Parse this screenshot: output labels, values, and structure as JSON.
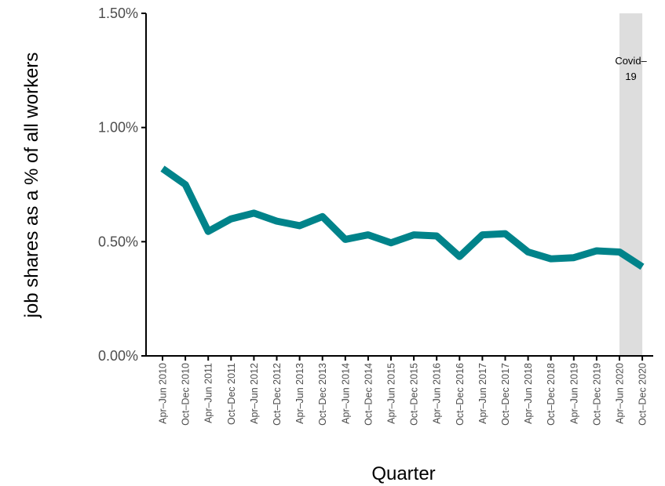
{
  "chart_data": {
    "type": "line",
    "xlabel": "Quarter",
    "ylabel": "job shares as a % of all workers",
    "ylim": [
      0,
      1.5
    ],
    "yticks": [
      "0.00%",
      "0.50%",
      "1.00%",
      "1.50%"
    ],
    "ytick_values": [
      0,
      0.5,
      1.0,
      1.5
    ],
    "categories": [
      "Apr–Jun 2010",
      "Oct–Dec 2010",
      "Apr–Jun 2011",
      "Oct–Dec 2011",
      "Apr–Jun 2012",
      "Oct–Dec 2012",
      "Apr–Jun 2013",
      "Oct–Dec 2013",
      "Apr–Jun 2014",
      "Oct–Dec 2014",
      "Apr–Jun 2015",
      "Oct–Dec 2015",
      "Apr–Jun 2016",
      "Oct–Dec 2016",
      "Apr–Jun 2017",
      "Oct–Dec 2017",
      "Apr–Jun 2018",
      "Oct–Dec 2018",
      "Apr–Jun 2019",
      "Oct–Dec 2019",
      "Apr–Jun 2020",
      "Oct–Dec 2020"
    ],
    "series": [
      {
        "values": [
          0.82,
          0.75,
          0.545,
          0.6,
          0.625,
          0.59,
          0.57,
          0.61,
          0.51,
          0.53,
          0.495,
          0.53,
          0.525,
          0.435,
          0.53,
          0.535,
          0.455,
          0.425,
          0.43,
          0.46,
          0.455,
          0.39
        ],
        "color": "#00838a"
      }
    ],
    "shaded_region": {
      "from": "Apr–Jun 2020",
      "to": "Oct–Dec 2020",
      "label_lines": [
        "Covid–",
        "19"
      ],
      "color": "#dddddd"
    },
    "grid": false,
    "legend": "none"
  }
}
